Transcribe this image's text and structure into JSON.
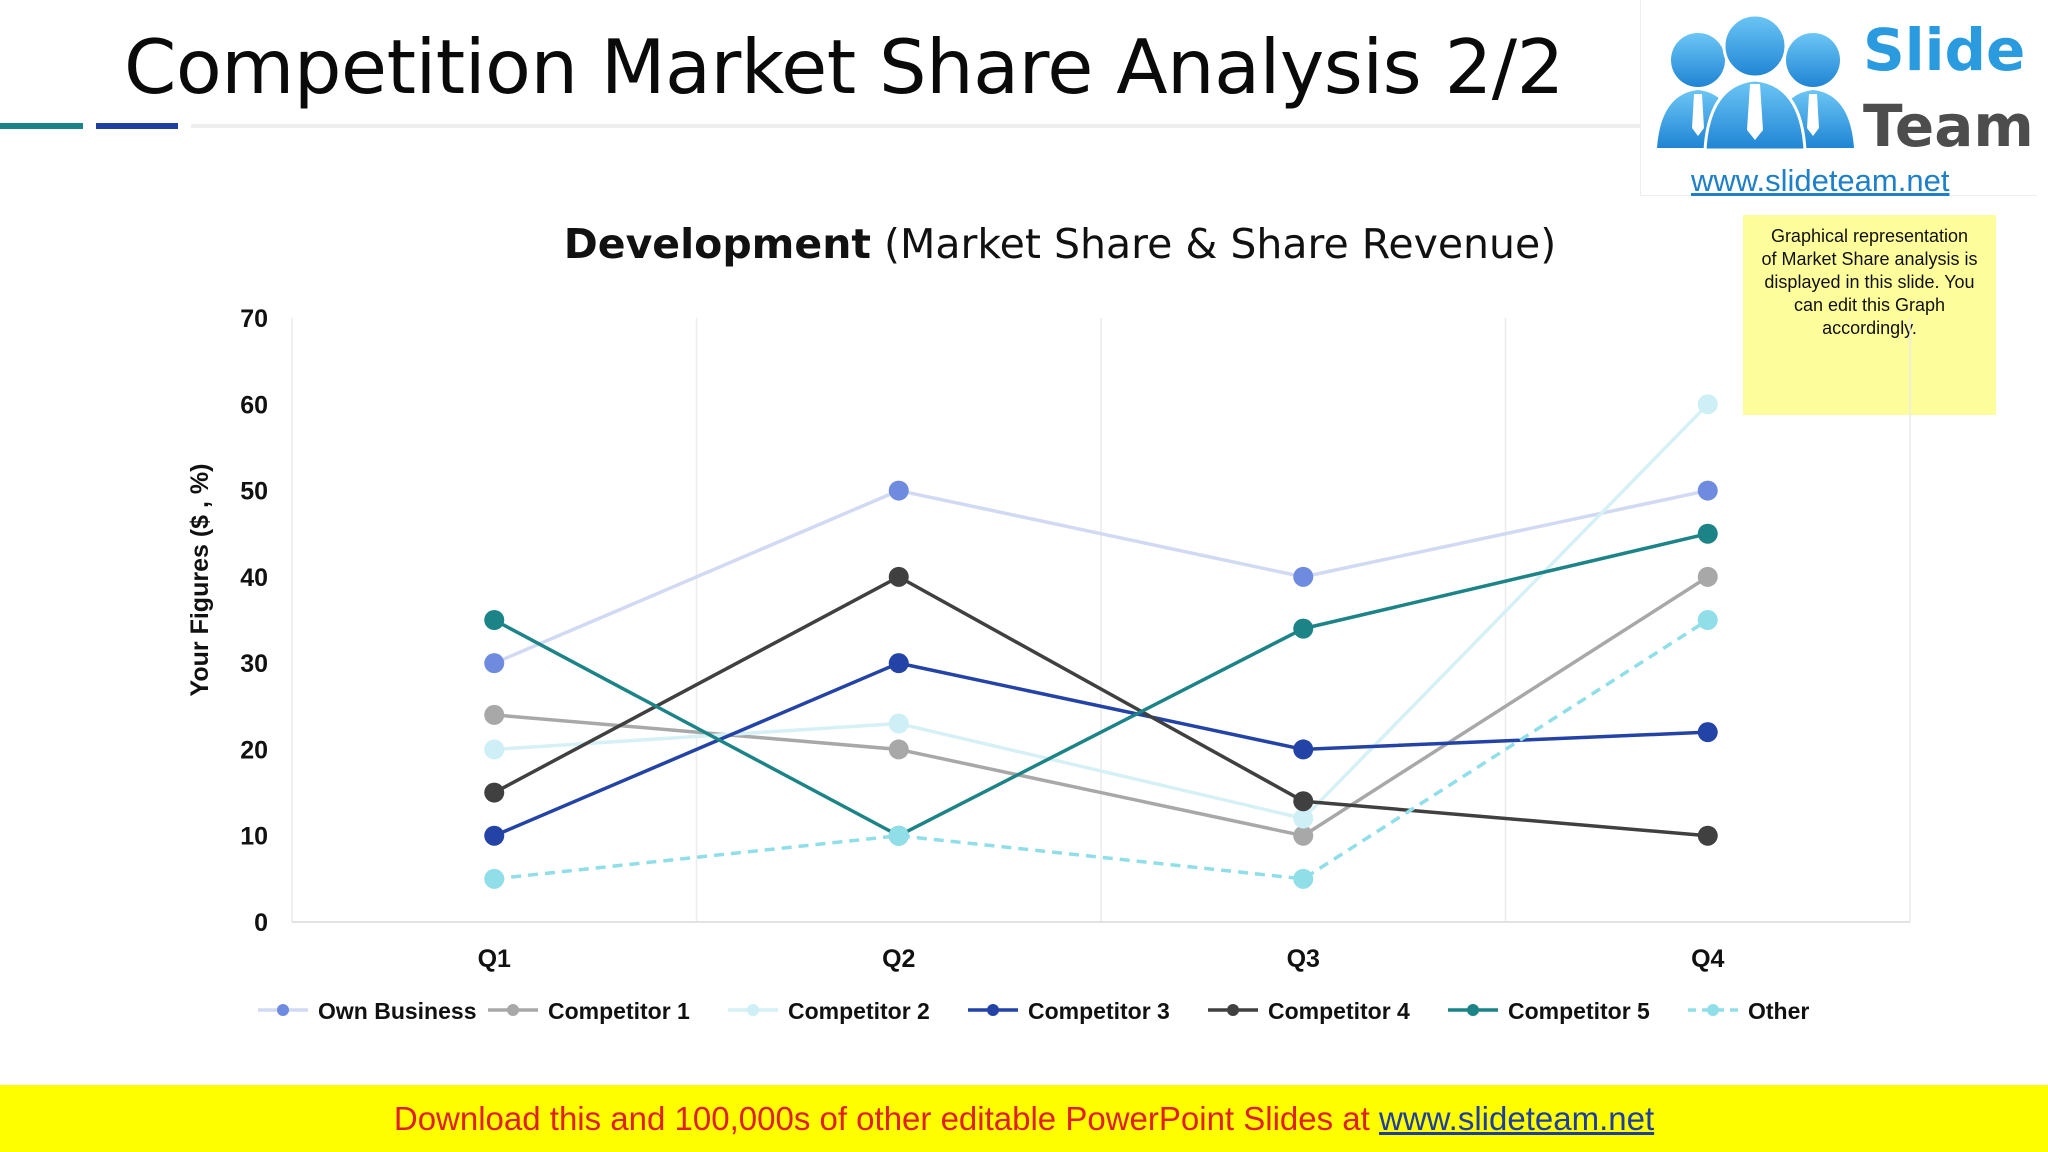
{
  "page": {
    "title": "Competition Market Share Analysis 2/2",
    "colors": {
      "accent_teal": "#1a8387",
      "accent_navy": "#1f3fa0",
      "banner": "#fefe00",
      "note": "#fdfd9c"
    }
  },
  "logo": {
    "icon": "three-people-logo",
    "word_slide": "Slide",
    "word_team": "Team",
    "url": "www.slideteam.net"
  },
  "note": {
    "text": "Graphical representation of Market Share analysis is displayed in this slide. You can edit this Graph accordingly."
  },
  "banner": {
    "text": "Download this and 100,000s of other editable PowerPoint Slides at ",
    "link": "www.slideteam.net"
  },
  "chart_data": {
    "type": "line",
    "title_bold": "Development",
    "title_rest": " (Market Share & Share Revenue)",
    "xlabel": "",
    "ylabel": "Your Figures ($ , %)",
    "categories": [
      "Q1",
      "Q2",
      "Q3",
      "Q4"
    ],
    "ylim": [
      0,
      70
    ],
    "yticks": [
      0,
      10,
      20,
      30,
      40,
      50,
      60,
      70
    ],
    "grid": "vertical",
    "legend": "bottom",
    "series": [
      {
        "name": "Own Business",
        "values": [
          30,
          50,
          40,
          50
        ],
        "color": "#d2daf3",
        "marker": "#6e8be0",
        "dash": false
      },
      {
        "name": "Competitor 1",
        "values": [
          24,
          20,
          10,
          40
        ],
        "color": "#a8a8a8",
        "marker": "#a8a8a8",
        "dash": false
      },
      {
        "name": "Competitor 2",
        "values": [
          20,
          23,
          12,
          60
        ],
        "color": "#d6f1f5",
        "marker": "#cdeff5",
        "dash": false
      },
      {
        "name": "Competitor 3",
        "values": [
          10,
          30,
          20,
          22
        ],
        "color": "#2443a6",
        "marker": "#2443a6",
        "dash": false
      },
      {
        "name": "Competitor 4",
        "values": [
          15,
          40,
          14,
          10
        ],
        "color": "#404040",
        "marker": "#404040",
        "dash": false
      },
      {
        "name": "Competitor 5",
        "values": [
          35,
          10,
          34,
          45
        ],
        "color": "#1c8487",
        "marker": "#1c8487",
        "dash": false
      },
      {
        "name": "Other",
        "values": [
          5,
          10,
          5,
          35
        ],
        "color": "#90dfe8",
        "marker": "#90dfe8",
        "dash": true
      }
    ]
  }
}
